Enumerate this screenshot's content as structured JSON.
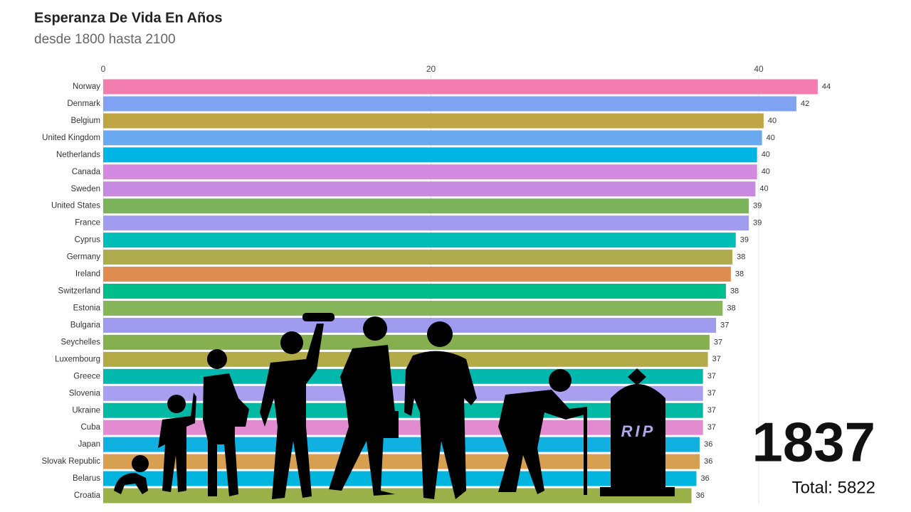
{
  "chart_data": {
    "type": "bar",
    "orientation": "horizontal",
    "title": "Esperanza De Vida En Años",
    "subtitle": "desde 1800 hasta 2100",
    "categories": [
      "Norway",
      "Denmark",
      "Belgium",
      "United Kingdom",
      "Netherlands",
      "Canada",
      "Sweden",
      "United States",
      "France",
      "Cyprus",
      "Germany",
      "Ireland",
      "Switzerland",
      "Estonia",
      "Bulgaria",
      "Seychelles",
      "Luxembourg",
      "Greece",
      "Slovenia",
      "Ukraine",
      "Cuba",
      "Japan",
      "Slovak Republic",
      "Belarus",
      "Croatia"
    ],
    "values": [
      43.6,
      42.3,
      40.3,
      40.2,
      39.9,
      39.9,
      39.8,
      39.4,
      39.4,
      38.6,
      38.4,
      38.3,
      38.0,
      37.8,
      37.4,
      37.0,
      36.9,
      36.6,
      36.6,
      36.6,
      36.6,
      36.4,
      36.4,
      36.2,
      35.9
    ],
    "value_labels": [
      "44",
      "42",
      "40",
      "40",
      "40",
      "40",
      "40",
      "39",
      "39",
      "39",
      "38",
      "38",
      "38",
      "38",
      "37",
      "37",
      "37",
      "37",
      "37",
      "37",
      "37",
      "36",
      "36",
      "36",
      "36"
    ],
    "colors": [
      "#f27bb0",
      "#7fa3f2",
      "#bfa544",
      "#6aa8f0",
      "#00b4e6",
      "#d48ae0",
      "#c68ae0",
      "#7bb35a",
      "#a19cf0",
      "#00bdb7",
      "#aeaa4e",
      "#de8c50",
      "#00bd8c",
      "#86b55a",
      "#9f9cf0",
      "#86b050",
      "#b3aa48",
      "#00b9ae",
      "#a99ef0",
      "#00b9a5",
      "#e28bd0",
      "#10b0e0",
      "#d7a050",
      "#00b5dd",
      "#9ab048"
    ],
    "xlim": [
      0,
      48
    ],
    "xticks": [
      0,
      20,
      40
    ],
    "grid": true,
    "annotations": [
      "1837",
      "Total: 5822",
      "RIP"
    ]
  }
}
